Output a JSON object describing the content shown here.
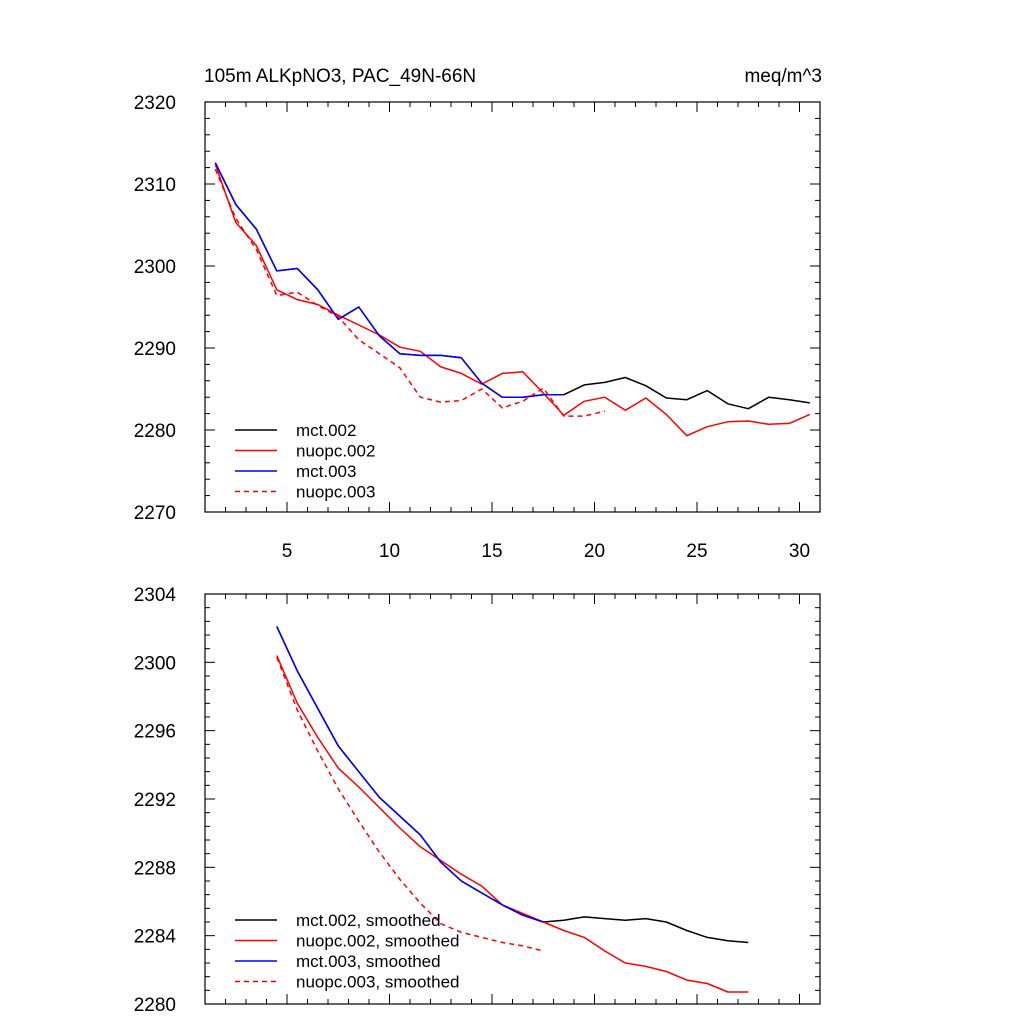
{
  "chart_data": [
    {
      "type": "line",
      "title": "105m ALKpNO3, PAC_49N-66N",
      "units": "meq/m^3",
      "xlim": [
        1,
        31
      ],
      "ylim": [
        2270,
        2320
      ],
      "xticks": [
        5,
        10,
        15,
        20,
        25,
        30
      ],
      "yticks": [
        2270,
        2280,
        2290,
        2300,
        2310,
        2320
      ],
      "series": [
        {
          "name": "mct.002",
          "color": "#000000",
          "dash": false,
          "x": [
            1.5,
            2.5,
            3.5,
            4.5,
            5.5,
            6.5,
            7.5,
            8.5,
            9.5,
            10.5,
            11.5,
            12.5,
            13.5,
            14.5,
            15.5,
            16.5,
            17.5,
            18.5,
            19.5,
            20.5,
            21.5,
            22.5,
            23.5,
            24.5,
            25.5,
            26.5,
            27.5,
            28.5,
            29.5,
            30.5
          ],
          "y": [
            2312.6,
            2307.5,
            2304.5,
            2299.4,
            2299.7,
            2297.1,
            2293.5,
            2295.0,
            2291.5,
            2289.3,
            2289.1,
            2289.1,
            2288.8,
            2285.7,
            2284.0,
            2284.0,
            2284.3,
            2284.3,
            2285.5,
            2285.8,
            2286.4,
            2285.4,
            2283.9,
            2283.7,
            2284.8,
            2283.2,
            2282.6,
            2284.0,
            2283.7,
            2283.3
          ]
        },
        {
          "name": "nuopc.002",
          "color": "#ff0000",
          "dash": false,
          "x": [
            1.5,
            2.5,
            3.5,
            4.5,
            5.5,
            6.5,
            7.5,
            8.5,
            9.5,
            10.5,
            11.5,
            12.5,
            13.5,
            14.5,
            15.5,
            16.5,
            17.5,
            18.5,
            19.5,
            20.5,
            21.5,
            22.5,
            23.5,
            24.5,
            25.5,
            26.5,
            27.5,
            28.5,
            29.5,
            30.5
          ],
          "y": [
            2312.4,
            2305.3,
            2302.5,
            2297.1,
            2295.9,
            2295.3,
            2294.0,
            2292.8,
            2291.6,
            2290.1,
            2289.6,
            2287.7,
            2286.9,
            2285.6,
            2286.9,
            2287.1,
            2284.5,
            2281.8,
            2283.5,
            2284.0,
            2282.4,
            2283.9,
            2281.9,
            2279.3,
            2280.4,
            2281.0,
            2281.1,
            2280.7,
            2280.8,
            2281.9
          ]
        },
        {
          "name": "mct.003",
          "color": "#0000ff",
          "dash": false,
          "x": [
            1.5,
            2.5,
            3.5,
            4.5,
            5.5,
            6.5,
            7.5,
            8.5,
            9.5,
            10.5,
            11.5,
            12.5,
            13.5,
            14.5,
            15.5,
            16.5,
            17.5,
            18.5
          ],
          "y": [
            2312.6,
            2307.5,
            2304.5,
            2299.4,
            2299.7,
            2297.1,
            2293.5,
            2295.0,
            2291.5,
            2289.3,
            2289.1,
            2289.1,
            2288.8,
            2285.7,
            2284.0,
            2284.0,
            2284.3,
            2284.3
          ]
        },
        {
          "name": "nuopc.003",
          "color": "#ff0000",
          "dash": true,
          "x": [
            1.5,
            2.5,
            3.5,
            4.5,
            5.5,
            6.5,
            7.5,
            8.5,
            9.5,
            10.5,
            11.5,
            12.5,
            13.5,
            14.5,
            15.5,
            16.5,
            17.5,
            18.5,
            19.5,
            20.5
          ],
          "y": [
            2311.8,
            2305.8,
            2302.0,
            2296.4,
            2296.8,
            2295.2,
            2293.8,
            2291.0,
            2289.3,
            2287.6,
            2284.0,
            2283.4,
            2283.6,
            2285.0,
            2282.7,
            2283.5,
            2285.1,
            2281.7,
            2281.7,
            2282.3
          ]
        }
      ],
      "legend": [
        "mct.002",
        "nuopc.002",
        "mct.003",
        "nuopc.003"
      ],
      "legend_position": "bottom-left"
    },
    {
      "type": "line",
      "title": "",
      "xlim": [
        1,
        31
      ],
      "ylim": [
        2280,
        2304
      ],
      "xticks": [
        5,
        10,
        15,
        20,
        25,
        30
      ],
      "yticks": [
        2280,
        2284,
        2288,
        2292,
        2296,
        2300,
        2304
      ],
      "series": [
        {
          "name": "mct.002, smoothed",
          "color": "#000000",
          "dash": false,
          "x": [
            4.5,
            5.5,
            6.5,
            7.5,
            8.5,
            9.5,
            10.5,
            11.5,
            12.5,
            13.5,
            14.5,
            15.5,
            16.5,
            17.5,
            18.5,
            19.5,
            20.5,
            21.5,
            22.5,
            23.5,
            24.5,
            25.5,
            26.5,
            27.5
          ],
          "y": [
            2302.1,
            2299.5,
            2297.3,
            2295.1,
            2293.6,
            2292.1,
            2291.0,
            2289.9,
            2288.3,
            2287.2,
            2286.5,
            2285.8,
            2285.2,
            2284.8,
            2284.9,
            2285.1,
            2285.0,
            2284.9,
            2285.0,
            2284.8,
            2284.3,
            2283.9,
            2283.7,
            2283.6
          ]
        },
        {
          "name": "nuopc.002, smoothed",
          "color": "#ff0000",
          "dash": false,
          "x": [
            4.5,
            5.5,
            6.5,
            7.5,
            8.5,
            9.5,
            10.5,
            11.5,
            12.5,
            13.5,
            14.5,
            15.5,
            16.5,
            17.5,
            18.5,
            19.5,
            20.5,
            21.5,
            22.5,
            23.5,
            24.5,
            25.5,
            26.5,
            27.5
          ],
          "y": [
            2300.4,
            2297.6,
            2295.6,
            2293.8,
            2292.7,
            2291.5,
            2290.3,
            2289.2,
            2288.4,
            2287.6,
            2286.9,
            2285.8,
            2285.3,
            2284.8,
            2284.3,
            2283.9,
            2283.1,
            2282.4,
            2282.2,
            2281.9,
            2281.4,
            2281.2,
            2280.7,
            2280.7
          ]
        },
        {
          "name": "mct.003, smoothed",
          "color": "#0000ff",
          "dash": false,
          "x": [
            4.5,
            5.5,
            6.5,
            7.5,
            8.5,
            9.5,
            10.5,
            11.5,
            12.5,
            13.5,
            14.5,
            15.5,
            16.5,
            17.5
          ],
          "y": [
            2302.1,
            2299.5,
            2297.3,
            2295.1,
            2293.6,
            2292.1,
            2291.0,
            2289.9,
            2288.3,
            2287.2,
            2286.5,
            2285.8,
            2285.2,
            2284.8
          ]
        },
        {
          "name": "nuopc.003, smoothed",
          "color": "#ff0000",
          "dash": true,
          "x": [
            4.5,
            5.5,
            6.5,
            7.5,
            8.5,
            9.5,
            10.5,
            11.5,
            12.5,
            13.5,
            14.5,
            15.5,
            16.5,
            17.5
          ],
          "y": [
            2300.3,
            2297.2,
            2294.8,
            2292.6,
            2290.7,
            2288.9,
            2287.3,
            2285.9,
            2284.7,
            2284.2,
            2283.9,
            2283.6,
            2283.4,
            2283.1
          ]
        }
      ],
      "legend": [
        "mct.002, smoothed",
        "nuopc.002, smoothed",
        "mct.003, smoothed",
        "nuopc.003, smoothed"
      ],
      "legend_position": "bottom-left"
    }
  ]
}
